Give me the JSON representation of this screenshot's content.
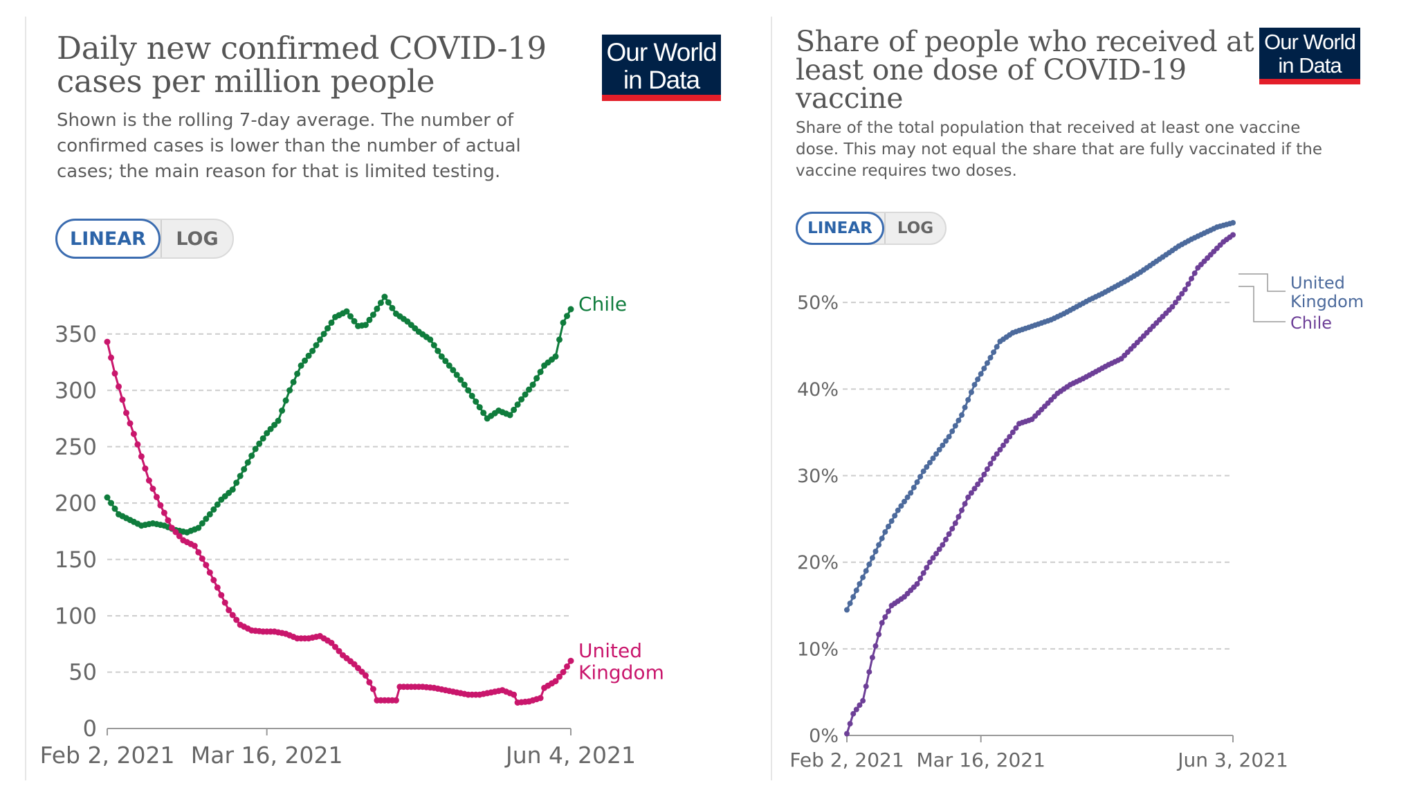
{
  "left": {
    "title_line1": "Daily new confirmed COVID-19",
    "title_line2": "cases per million people",
    "subtitle_line1": "Shown is the rolling 7-day average. The number of",
    "subtitle_line2": "confirmed cases is lower than the number of actual",
    "subtitle_line3": "cases; the main reason for that is limited testing.",
    "logo_line1": "Our World",
    "logo_line2": "in Data",
    "toggle": {
      "linear": "LINEAR",
      "log": "LOG",
      "active": "linear"
    }
  },
  "right": {
    "title_line1": "Share of people who received at",
    "title_line2": "least one dose of COVID-19",
    "title_line3": "vaccine",
    "subtitle_line1": "Share of the total population that received at least one vaccine",
    "subtitle_line2": "dose. This may not equal the share that are fully vaccinated if the",
    "subtitle_line3": "vaccine requires two doses.",
    "logo_line1": "Our World",
    "logo_line2": "in Data",
    "toggle": {
      "linear": "LINEAR",
      "log": "LOG",
      "active": "linear"
    }
  },
  "colors": {
    "chile_cases": "#0f7c3c",
    "uk_cases": "#c9166c",
    "uk_vacc": "#4c6a9c",
    "chile_vacc": "#6d3f97",
    "grid": "#cccccc",
    "tick_text": "#666666",
    "logo_bg": "#002147",
    "logo_bar": "#e31e29"
  },
  "chart_data": [
    {
      "type": "line",
      "ylim": [
        0,
        375
      ],
      "yticks": [
        0,
        50,
        100,
        150,
        200,
        250,
        300,
        350
      ],
      "x_range": [
        "2021-02-02",
        "2021-06-04"
      ],
      "x_ticks": [
        {
          "date": "2021-02-02",
          "label": "Feb 2, 2021"
        },
        {
          "date": "2021-03-16",
          "label": "Mar 16, 2021"
        },
        {
          "date": "2021-06-04",
          "label": "Jun 4, 2021"
        }
      ],
      "grid": true,
      "series": [
        {
          "name": "Chile",
          "label_lines": [
            "Chile"
          ],
          "points": [
            [
              "2021-02-02",
              205
            ],
            [
              "2021-02-05",
              190
            ],
            [
              "2021-02-08",
              185
            ],
            [
              "2021-02-11",
              180
            ],
            [
              "2021-02-14",
              182
            ],
            [
              "2021-02-17",
              180
            ],
            [
              "2021-02-20",
              176
            ],
            [
              "2021-02-23",
              174
            ],
            [
              "2021-02-26",
              178
            ],
            [
              "2021-03-01",
              190
            ],
            [
              "2021-03-04",
              203
            ],
            [
              "2021-03-07",
              212
            ],
            [
              "2021-03-10",
              230
            ],
            [
              "2021-03-13",
              248
            ],
            [
              "2021-03-16",
              262
            ],
            [
              "2021-03-19",
              273
            ],
            [
              "2021-03-22",
              300
            ],
            [
              "2021-03-25",
              322
            ],
            [
              "2021-03-28",
              335
            ],
            [
              "2021-03-31",
              350
            ],
            [
              "2021-04-03",
              365
            ],
            [
              "2021-04-06",
              370
            ],
            [
              "2021-04-09",
              357
            ],
            [
              "2021-04-11",
              358
            ],
            [
              "2021-04-13",
              367
            ],
            [
              "2021-04-16",
              383
            ],
            [
              "2021-04-19",
              368
            ],
            [
              "2021-04-22",
              361
            ],
            [
              "2021-04-25",
              352
            ],
            [
              "2021-04-28",
              345
            ],
            [
              "2021-05-01",
              330
            ],
            [
              "2021-05-04",
              318
            ],
            [
              "2021-05-07",
              305
            ],
            [
              "2021-05-10",
              290
            ],
            [
              "2021-05-13",
              275
            ],
            [
              "2021-05-16",
              282
            ],
            [
              "2021-05-19",
              278
            ],
            [
              "2021-05-22",
              292
            ],
            [
              "2021-05-25",
              305
            ],
            [
              "2021-05-28",
              322
            ],
            [
              "2021-05-31",
              330
            ],
            [
              "2021-06-02",
              360
            ],
            [
              "2021-06-04",
              372
            ]
          ]
        },
        {
          "name": "United Kingdom",
          "label_lines": [
            "United",
            "Kingdom"
          ],
          "points": [
            [
              "2021-02-02",
              343
            ],
            [
              "2021-02-04",
              315
            ],
            [
              "2021-02-07",
              280
            ],
            [
              "2021-02-10",
              252
            ],
            [
              "2021-02-13",
              220
            ],
            [
              "2021-02-16",
              198
            ],
            [
              "2021-02-19",
              178
            ],
            [
              "2021-02-22",
              167
            ],
            [
              "2021-02-25",
              162
            ],
            [
              "2021-02-28",
              145
            ],
            [
              "2021-03-03",
              125
            ],
            [
              "2021-03-06",
              105
            ],
            [
              "2021-03-09",
              92
            ],
            [
              "2021-03-12",
              87
            ],
            [
              "2021-03-15",
              86
            ],
            [
              "2021-03-18",
              86
            ],
            [
              "2021-03-21",
              84
            ],
            [
              "2021-03-24",
              80
            ],
            [
              "2021-03-27",
              80
            ],
            [
              "2021-03-30",
              82
            ],
            [
              "2021-04-02",
              76
            ],
            [
              "2021-04-05",
              65
            ],
            [
              "2021-04-08",
              57
            ],
            [
              "2021-04-11",
              47
            ],
            [
              "2021-04-13",
              35
            ],
            [
              "2021-04-14",
              25
            ],
            [
              "2021-04-17",
              25
            ],
            [
              "2021-04-19",
              25
            ],
            [
              "2021-04-20",
              37
            ],
            [
              "2021-04-23",
              37
            ],
            [
              "2021-04-26",
              37
            ],
            [
              "2021-04-29",
              36
            ],
            [
              "2021-05-02",
              34
            ],
            [
              "2021-05-05",
              32
            ],
            [
              "2021-05-08",
              30
            ],
            [
              "2021-05-11",
              30
            ],
            [
              "2021-05-14",
              32
            ],
            [
              "2021-05-17",
              34
            ],
            [
              "2021-05-20",
              30
            ],
            [
              "2021-05-21",
              23
            ],
            [
              "2021-05-24",
              24
            ],
            [
              "2021-05-27",
              27
            ],
            [
              "2021-05-28",
              36
            ],
            [
              "2021-05-31",
              42
            ],
            [
              "2021-06-02",
              50
            ],
            [
              "2021-06-04",
              60
            ]
          ]
        }
      ]
    },
    {
      "type": "line",
      "ylim": [
        0,
        60
      ],
      "yticks": [
        0,
        10,
        20,
        30,
        40,
        50
      ],
      "ytick_suffix": "%",
      "x_range": [
        "2021-02-02",
        "2021-06-03"
      ],
      "x_ticks": [
        {
          "date": "2021-02-02",
          "label": "Feb 2, 2021"
        },
        {
          "date": "2021-03-16",
          "label": "Mar 16, 2021"
        },
        {
          "date": "2021-06-03",
          "label": "Jun 3, 2021"
        }
      ],
      "grid": true,
      "series": [
        {
          "name": "United Kingdom",
          "label_lines": [
            "United",
            "Kingdom"
          ],
          "points": [
            [
              "2021-02-02",
              14.5
            ],
            [
              "2021-02-06",
              17.5
            ],
            [
              "2021-02-10",
              20.5
            ],
            [
              "2021-02-14",
              23.5
            ],
            [
              "2021-02-18",
              26
            ],
            [
              "2021-02-22",
              28
            ],
            [
              "2021-02-26",
              30.5
            ],
            [
              "2021-03-02",
              32.5
            ],
            [
              "2021-03-06",
              34.5
            ],
            [
              "2021-03-10",
              37
            ],
            [
              "2021-03-14",
              40.5
            ],
            [
              "2021-03-18",
              43
            ],
            [
              "2021-03-22",
              45.5
            ],
            [
              "2021-03-26",
              46.5
            ],
            [
              "2021-03-30",
              47
            ],
            [
              "2021-04-03",
              47.5
            ],
            [
              "2021-04-07",
              48
            ],
            [
              "2021-04-11",
              48.7
            ],
            [
              "2021-04-15",
              49.5
            ],
            [
              "2021-04-19",
              50.3
            ],
            [
              "2021-04-23",
              51
            ],
            [
              "2021-04-27",
              51.8
            ],
            [
              "2021-05-01",
              52.6
            ],
            [
              "2021-05-05",
              53.5
            ],
            [
              "2021-05-09",
              54.5
            ],
            [
              "2021-05-13",
              55.5
            ],
            [
              "2021-05-17",
              56.5
            ],
            [
              "2021-05-21",
              57.3
            ],
            [
              "2021-05-25",
              58
            ],
            [
              "2021-05-29",
              58.7
            ],
            [
              "2021-06-03",
              59.2
            ]
          ]
        },
        {
          "name": "Chile",
          "label_lines": [
            "Chile"
          ],
          "points": [
            [
              "2021-02-02",
              0.2
            ],
            [
              "2021-02-04",
              2.5
            ],
            [
              "2021-02-07",
              4
            ],
            [
              "2021-02-10",
              9
            ],
            [
              "2021-02-13",
              13
            ],
            [
              "2021-02-16",
              15
            ],
            [
              "2021-02-20",
              16
            ],
            [
              "2021-02-24",
              17.5
            ],
            [
              "2021-02-28",
              20
            ],
            [
              "2021-03-04",
              22
            ],
            [
              "2021-03-08",
              24.5
            ],
            [
              "2021-03-12",
              27.5
            ],
            [
              "2021-03-16",
              29.5
            ],
            [
              "2021-03-20",
              32
            ],
            [
              "2021-03-24",
              34
            ],
            [
              "2021-03-28",
              36
            ],
            [
              "2021-04-01",
              36.5
            ],
            [
              "2021-04-05",
              38
            ],
            [
              "2021-04-09",
              39.5
            ],
            [
              "2021-04-13",
              40.5
            ],
            [
              "2021-04-17",
              41.2
            ],
            [
              "2021-04-21",
              42
            ],
            [
              "2021-04-25",
              42.8
            ],
            [
              "2021-04-29",
              43.5
            ],
            [
              "2021-05-03",
              45
            ],
            [
              "2021-05-07",
              46.5
            ],
            [
              "2021-05-11",
              48
            ],
            [
              "2021-05-15",
              49.5
            ],
            [
              "2021-05-19",
              51.5
            ],
            [
              "2021-05-23",
              54
            ],
            [
              "2021-05-27",
              55.5
            ],
            [
              "2021-05-31",
              57
            ],
            [
              "2021-06-03",
              57.8
            ]
          ]
        }
      ]
    }
  ]
}
